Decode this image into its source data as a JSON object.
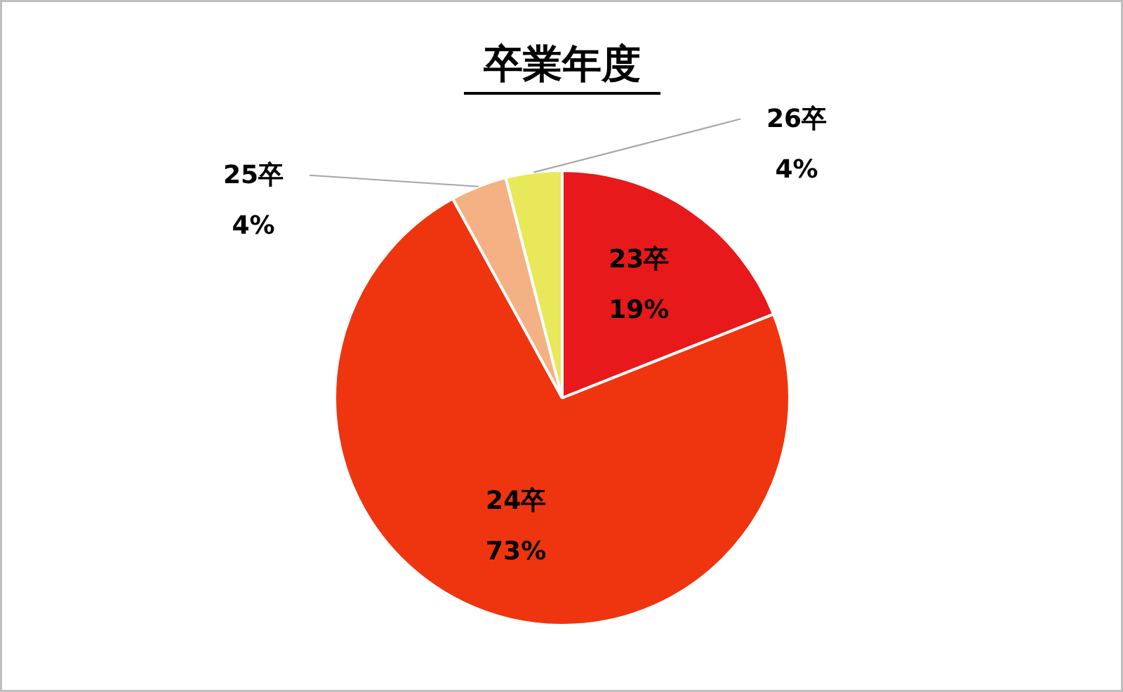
{
  "chart_data": {
    "type": "pie",
    "title": "卒業年度",
    "categories": [
      "23卒",
      "24卒",
      "25卒",
      "26卒"
    ],
    "values": [
      19,
      73,
      4,
      4
    ],
    "colors": [
      "#e8191a",
      "#ee3510",
      "#f4b183",
      "#e8e85a"
    ],
    "value_labels": [
      "19%",
      "73%",
      "4%",
      "4%"
    ]
  }
}
